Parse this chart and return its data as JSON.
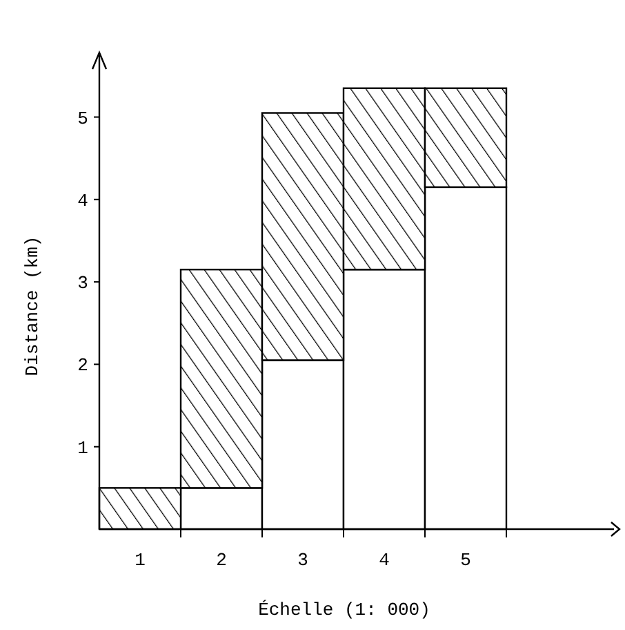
{
  "chart_data": {
    "type": "bar",
    "stacked": true,
    "xlabel": "Échelle (1: 000)",
    "ylabel": "Distance (km)",
    "categories": [
      "1",
      "2",
      "3",
      "4",
      "5"
    ],
    "series": [
      {
        "color": "#ffffff",
        "values": [
          0,
          0.5,
          2.05,
          3.15,
          4.15
        ]
      },
      {
        "color": "#000000",
        "values": [
          0.5,
          2.65,
          3.0,
          2.2,
          1.2
        ]
      }
    ],
    "ylim": [
      0,
      5.75
    ],
    "yticks": [
      1,
      2,
      3,
      4,
      5
    ],
    "grid": false
  }
}
